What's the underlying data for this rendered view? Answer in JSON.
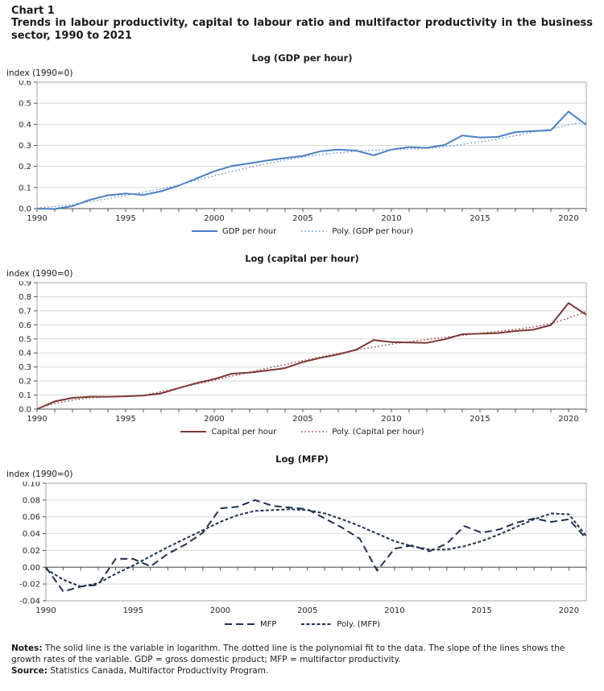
{
  "header": {
    "chart_label": "Chart 1",
    "title": "Trends in labour productivity, capital to labour ratio and multifactor productivity in the business sector, 1990 to 2021"
  },
  "colors": {
    "grid": "#d9d9d9",
    "plot_border": "#a6a6a6",
    "axis": "#4f4f4f",
    "text": "#262626",
    "blue_solid": "#4a80c2",
    "blue_dotted": "#6f9bd1",
    "maroon_solid": "#7b3735",
    "maroon_dotted": "#8d4a44",
    "navy": "#1e3150"
  },
  "chart_data": [
    {
      "type": "line",
      "title": "Log (GDP per hour)",
      "unit_label": "index (1990=0)",
      "x": [
        1990,
        1991,
        1992,
        1993,
        1994,
        1995,
        1996,
        1997,
        1998,
        1999,
        2000,
        2001,
        2002,
        2003,
        2004,
        2005,
        2006,
        2007,
        2008,
        2009,
        2010,
        2011,
        2012,
        2013,
        2014,
        2015,
        2016,
        2017,
        2018,
        2019,
        2020,
        2021
      ],
      "xtick_values": [
        1990,
        1995,
        2000,
        2005,
        2010,
        2015,
        2020
      ],
      "xtick_labels": [
        "1990",
        "1995",
        "2000",
        "2005",
        "2010",
        "2015",
        "2020"
      ],
      "ylim": [
        0,
        0.6
      ],
      "ytick_values": [
        0,
        0.1,
        0.2,
        0.3,
        0.4,
        0.5,
        0.6
      ],
      "ytick_labels": [
        "0.0",
        "0.1",
        "0.2",
        "0.3",
        "0.4",
        "0.5",
        "0.6"
      ],
      "grid": true,
      "legend_position": "bottom",
      "series": [
        {
          "name": "GDP per hour",
          "line_style": "solid",
          "color": "#4a80c2",
          "width": 2,
          "values": [
            0.0,
            -0.002,
            0.012,
            0.042,
            0.063,
            0.071,
            0.065,
            0.082,
            0.109,
            0.143,
            0.177,
            0.202,
            0.215,
            0.228,
            0.24,
            0.25,
            0.272,
            0.28,
            0.275,
            0.253,
            0.28,
            0.292,
            0.288,
            0.302,
            0.347,
            0.337,
            0.34,
            0.363,
            0.368,
            0.372,
            0.46,
            0.397
          ]
        },
        {
          "name": "Poly. (GDP per hour)",
          "line_style": "dotted",
          "color": "#6f9bd1",
          "width": 1.5,
          "values": [
            0.003,
            0.01,
            0.02,
            0.033,
            0.047,
            0.062,
            0.078,
            0.094,
            0.112,
            0.134,
            0.156,
            0.177,
            0.196,
            0.214,
            0.23,
            0.244,
            0.256,
            0.265,
            0.272,
            0.277,
            0.28,
            0.282,
            0.285,
            0.293,
            0.305,
            0.317,
            0.33,
            0.346,
            0.363,
            0.378,
            0.398,
            0.412
          ]
        }
      ]
    },
    {
      "type": "line",
      "title": "Log (capital per hour)",
      "unit_label": "index (1990=0)",
      "x": [
        1990,
        1991,
        1992,
        1993,
        1994,
        1995,
        1996,
        1997,
        1998,
        1999,
        2000,
        2001,
        2002,
        2003,
        2004,
        2005,
        2006,
        2007,
        2008,
        2009,
        2010,
        2011,
        2012,
        2013,
        2014,
        2015,
        2016,
        2017,
        2018,
        2019,
        2020,
        2021
      ],
      "xtick_values": [
        1990,
        1995,
        2000,
        2005,
        2010,
        2015,
        2020
      ],
      "xtick_labels": [
        "1990",
        "1995",
        "2000",
        "2005",
        "2010",
        "2015",
        "2020"
      ],
      "ylim": [
        0,
        0.9
      ],
      "ytick_values": [
        0,
        0.1,
        0.2,
        0.3,
        0.4,
        0.5,
        0.6,
        0.7,
        0.8,
        0.9
      ],
      "ytick_labels": [
        "0.0",
        "0.1",
        "0.2",
        "0.3",
        "0.4",
        "0.5",
        "0.6",
        "0.7",
        "0.8",
        "0.9"
      ],
      "grid": true,
      "legend_position": "bottom",
      "series": [
        {
          "name": "Capital per hour",
          "line_style": "solid",
          "color": "#7b3735",
          "width": 2,
          "values": [
            0.0,
            0.055,
            0.08,
            0.088,
            0.088,
            0.091,
            0.097,
            0.112,
            0.15,
            0.185,
            0.214,
            0.252,
            0.26,
            0.275,
            0.292,
            0.335,
            0.365,
            0.39,
            0.422,
            0.492,
            0.477,
            0.474,
            0.472,
            0.497,
            0.533,
            0.537,
            0.541,
            0.556,
            0.565,
            0.598,
            0.755,
            0.672
          ]
        },
        {
          "name": "Poly. (Capital per hour)",
          "line_style": "dotted",
          "color": "#8d4a44",
          "width": 1.5,
          "values": [
            0.005,
            0.04,
            0.065,
            0.08,
            0.087,
            0.092,
            0.099,
            0.124,
            0.15,
            0.178,
            0.206,
            0.235,
            0.263,
            0.291,
            0.318,
            0.345,
            0.371,
            0.396,
            0.42,
            0.442,
            0.462,
            0.48,
            0.496,
            0.511,
            0.525,
            0.539,
            0.553,
            0.568,
            0.585,
            0.608,
            0.648,
            0.695
          ]
        }
      ]
    },
    {
      "type": "line",
      "title": "Log (MFP)",
      "unit_label": "index (1990=0)",
      "x": [
        1990,
        1991,
        1992,
        1993,
        1994,
        1995,
        1996,
        1997,
        1998,
        1999,
        2000,
        2001,
        2002,
        2003,
        2004,
        2005,
        2006,
        2007,
        2008,
        2009,
        2010,
        2011,
        2012,
        2013,
        2014,
        2015,
        2016,
        2017,
        2018,
        2019,
        2020,
        2021
      ],
      "xtick_values": [
        1990,
        1995,
        2000,
        2005,
        2010,
        2015,
        2020
      ],
      "xtick_labels": [
        "1990",
        "1995",
        "2000",
        "2005",
        "2010",
        "2015",
        "2020"
      ],
      "ylim": [
        -0.04,
        0.1
      ],
      "ytick_values": [
        -0.04,
        -0.02,
        0,
        0.02,
        0.04,
        0.06,
        0.08,
        0.1
      ],
      "ytick_labels": [
        "-0.04",
        "-0.02",
        "0.00",
        "0.02",
        "0.04",
        "0.06",
        "0.08",
        "0.10"
      ],
      "grid": true,
      "legend_position": "bottom",
      "series": [
        {
          "name": "MFP",
          "line_style": "long-dash",
          "color": "#1e3150",
          "width": 2,
          "values": [
            0.0,
            -0.029,
            -0.023,
            -0.021,
            0.01,
            0.01,
            0.001,
            0.016,
            0.027,
            0.041,
            0.07,
            0.072,
            0.08,
            0.073,
            0.071,
            0.069,
            0.058,
            0.047,
            0.034,
            -0.004,
            0.022,
            0.026,
            0.019,
            0.028,
            0.049,
            0.041,
            0.045,
            0.053,
            0.058,
            0.054,
            0.057,
            0.034
          ]
        },
        {
          "name": "Poly. (MFP)",
          "line_style": "dash",
          "color": "#1e3150",
          "width": 2,
          "values": [
            -0.002,
            -0.015,
            -0.023,
            -0.019,
            -0.008,
            0.002,
            0.013,
            0.024,
            0.034,
            0.044,
            0.054,
            0.062,
            0.067,
            0.068,
            0.069,
            0.068,
            0.064,
            0.057,
            0.049,
            0.04,
            0.031,
            0.025,
            0.021,
            0.021,
            0.025,
            0.031,
            0.039,
            0.048,
            0.057,
            0.064,
            0.063,
            0.037
          ]
        }
      ]
    }
  ],
  "notes": {
    "notes_label": "Notes:",
    "notes_text": "The solid line is the variable in logarithm. The dotted line is the polynomial fit to the data. The slope of the lines shows the growth rates of the variable. GDP = gross domestic product; MFP = multifactor productivity.",
    "source_label": "Source:",
    "source_text": "Statistics Canada, Multifactor Productivity Program."
  }
}
